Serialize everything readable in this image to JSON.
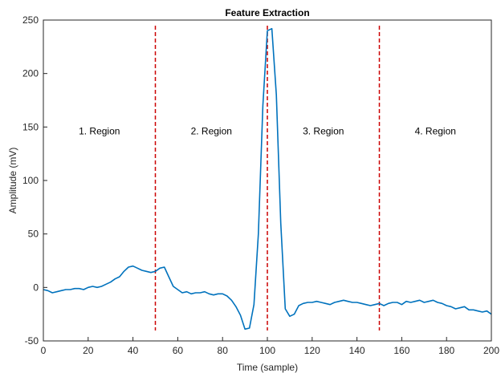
{
  "chart_data": {
    "type": "line",
    "title": "Feature Extraction",
    "xlabel": "Time (sample)",
    "ylabel": "Amplitude (mV)",
    "xlim": [
      0,
      200
    ],
    "ylim": [
      -50,
      250
    ],
    "xticks": [
      0,
      20,
      40,
      60,
      80,
      100,
      120,
      140,
      160,
      180,
      200
    ],
    "yticks": [
      -50,
      0,
      50,
      100,
      150,
      200,
      250
    ],
    "grid": false,
    "legend": "none",
    "line_color": "#0072BD",
    "divider_color": "#CC0000",
    "dividers": [
      50,
      100,
      150
    ],
    "region_labels": [
      {
        "text": "1. Region",
        "x": 25,
        "y": 143
      },
      {
        "text": "2. Region",
        "x": 75,
        "y": 143
      },
      {
        "text": "3. Region",
        "x": 125,
        "y": 143
      },
      {
        "text": "4. Region",
        "x": 175,
        "y": 143
      }
    ],
    "series": [
      {
        "x": [
          0,
          2,
          4,
          6,
          8,
          10,
          12,
          14,
          16,
          18,
          20,
          22,
          24,
          26,
          28,
          30,
          32,
          34,
          36,
          38,
          40,
          42,
          44,
          46,
          48,
          50,
          52,
          54,
          56,
          58,
          60,
          62,
          64,
          66,
          68,
          70,
          72,
          74,
          76,
          78,
          80,
          82,
          84,
          86,
          88,
          90,
          92,
          94,
          96,
          98,
          100,
          102,
          104,
          106,
          108,
          110,
          112,
          114,
          116,
          118,
          120,
          122,
          124,
          126,
          128,
          130,
          132,
          134,
          136,
          138,
          140,
          142,
          144,
          146,
          148,
          150,
          152,
          154,
          156,
          158,
          160,
          162,
          164,
          166,
          168,
          170,
          172,
          174,
          176,
          178,
          180,
          182,
          184,
          186,
          188,
          190,
          192,
          194,
          196,
          198,
          200
        ],
        "y": [
          -2,
          -3,
          -5,
          -4,
          -3,
          -2,
          -2,
          -1,
          -1,
          -2,
          0,
          1,
          0,
          1,
          3,
          5,
          8,
          10,
          15,
          19,
          20,
          18,
          16,
          15,
          14,
          15,
          18,
          19,
          10,
          1,
          -2,
          -5,
          -4,
          -6,
          -5,
          -5,
          -4,
          -6,
          -7,
          -6,
          -6,
          -8,
          -12,
          -18,
          -26,
          -39,
          -38,
          -16,
          50,
          170,
          240,
          242,
          180,
          60,
          -20,
          -27,
          -25,
          -17,
          -15,
          -14,
          -14,
          -13,
          -14,
          -15,
          -16,
          -14,
          -13,
          -12,
          -13,
          -14,
          -14,
          -15,
          -16,
          -17,
          -16,
          -15,
          -17,
          -15,
          -14,
          -14,
          -16,
          -13,
          -14,
          -13,
          -12,
          -14,
          -13,
          -12,
          -14,
          -15,
          -17,
          -18,
          -20,
          -19,
          -18,
          -21,
          -21,
          -22,
          -23,
          -22,
          -25
        ]
      }
    ]
  }
}
